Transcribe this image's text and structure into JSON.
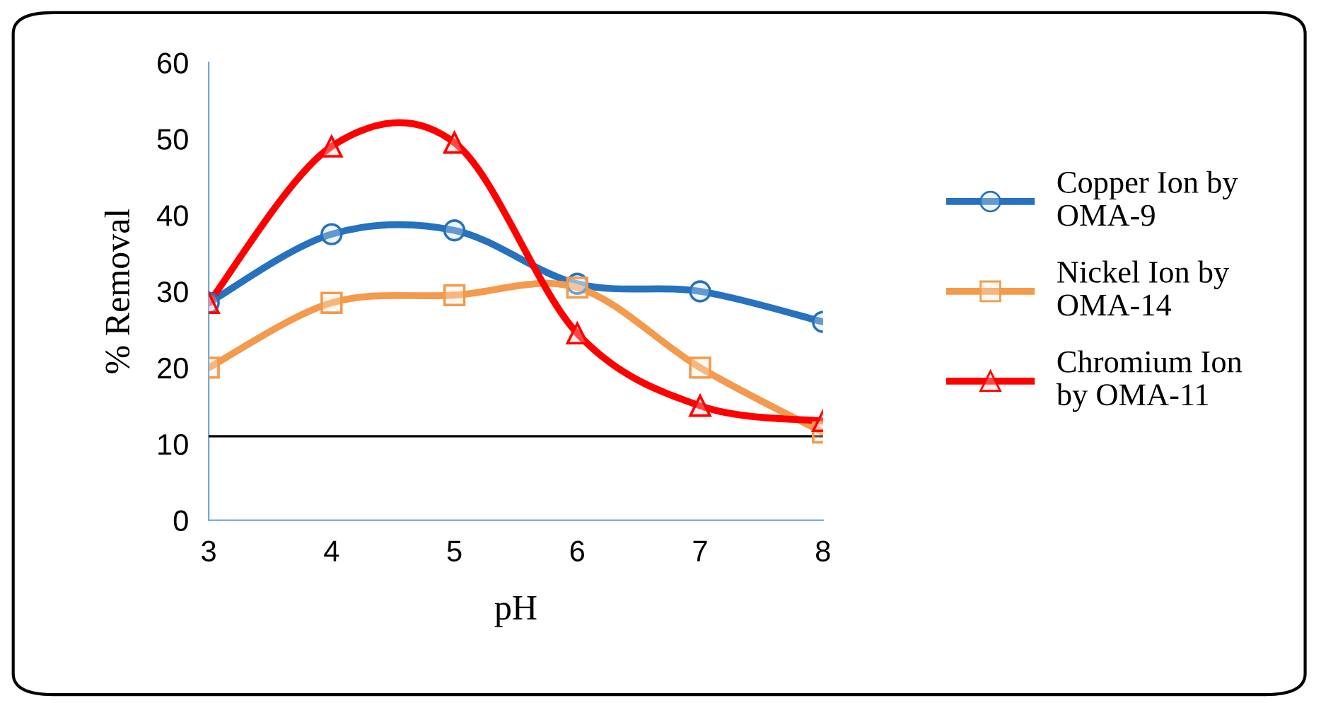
{
  "chart_data": {
    "type": "line",
    "xlabel": "pH",
    "ylabel": "% Removal",
    "x": [
      3,
      4,
      5,
      6,
      7,
      8
    ],
    "series": [
      {
        "name": "Copper Ion by\nOMA-9",
        "color": "#2672be",
        "marker": "circle",
        "values": [
          28.5,
          37.5,
          38,
          31,
          30,
          26
        ]
      },
      {
        "name": "Nickel Ion by\nOMA-14",
        "color": "#f39a4c",
        "marker": "square",
        "values": [
          20,
          28.5,
          29.5,
          30.5,
          20,
          11.5
        ]
      },
      {
        "name": "Chromium Ion\nby OMA-11",
        "color": "#ff0000",
        "marker": "triangle",
        "values": [
          28.5,
          49,
          49.5,
          24.5,
          15,
          13
        ]
      }
    ],
    "xlim": [
      3,
      8
    ],
    "xticks": [
      3,
      4,
      5,
      6,
      7,
      8
    ],
    "ylim": [
      0,
      60
    ],
    "yticks": [
      0,
      10,
      20,
      30,
      40,
      50,
      60
    ],
    "ref_lines": [
      {
        "axis": "y",
        "value": 11,
        "color": "#000000"
      }
    ],
    "grid": false,
    "legend": "right"
  }
}
